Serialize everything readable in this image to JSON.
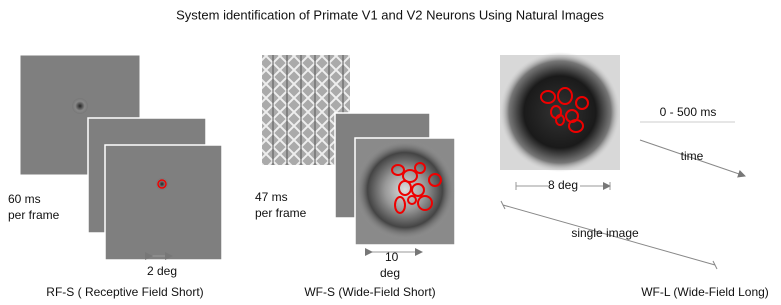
{
  "title": "System identification of  Primate V1 and V2  Neurons Using Natural Images",
  "panels": [
    {
      "caption": "RF-S  ( Receptive Field Short)",
      "rate": [
        "60 ms",
        "per frame"
      ],
      "size": [
        "2 deg"
      ]
    },
    {
      "caption": "WF-S  (Wide-Field Short)",
      "rate": [
        "47 ms",
        "per frame"
      ],
      "size": [
        "10",
        "deg"
      ]
    },
    {
      "caption": "WF-L  (Wide-Field Long)",
      "size": [
        "8 deg"
      ],
      "duration": "0 - 500 ms",
      "time": "time",
      "note": "single image"
    }
  ]
}
